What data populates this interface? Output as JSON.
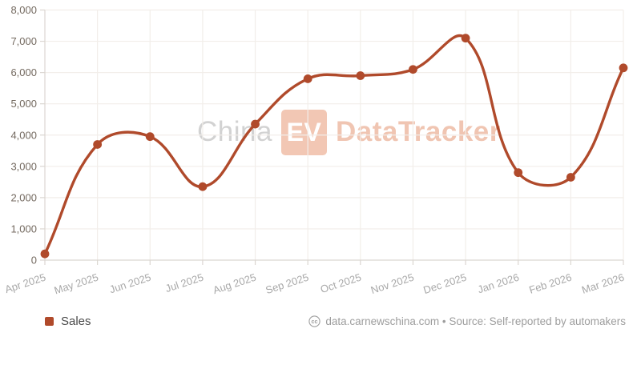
{
  "watermark": {
    "prefix": "China",
    "badge": "EV",
    "suffix": "DataTracker"
  },
  "legend": {
    "label": "Sales"
  },
  "attribution": {
    "icon": "cc-license-icon",
    "text": "data.carnewschina.com • Source: Self-reported by automakers"
  },
  "colors": {
    "line": "#b04a2b",
    "grid": "#f2eeea",
    "axis": "#dbd6d1",
    "y_label": "#746a60",
    "x_label": "#a8a8a8",
    "legend_text": "#4a4a4a",
    "attribution_text": "#9d9d9d",
    "watermark_gray": "#d2d2d2",
    "watermark_salmon": "#f0c5b2",
    "watermark_badge_bg": "#f2c7b4",
    "watermark_badge_text": "#ffffff",
    "background": "#ffffff"
  },
  "chart_data": {
    "type": "line",
    "series": [
      {
        "name": "Sales",
        "values": [
          200,
          3700,
          3950,
          2350,
          4350,
          5800,
          5900,
          6100,
          7100,
          2800,
          2650,
          6150
        ]
      }
    ],
    "categories": [
      "Apr 2025",
      "May 2025",
      "Jun 2025",
      "Jul 2025",
      "Aug 2025",
      "Sep 2025",
      "Oct 2025",
      "Nov 2025",
      "Dec 2025",
      "Jan 2026",
      "Feb 2026",
      "Mar 2026"
    ],
    "title": "",
    "xlabel": "",
    "ylabel": "",
    "ylim": [
      0,
      8000
    ],
    "ytick_step": 1000,
    "yticks": [
      "0",
      "1,000",
      "2,000",
      "3,000",
      "4,000",
      "5,000",
      "6,000",
      "7,000",
      "8,000"
    ],
    "grid": true,
    "smooth": true,
    "line_tension": 0.4,
    "legend_position": "bottom-left"
  }
}
